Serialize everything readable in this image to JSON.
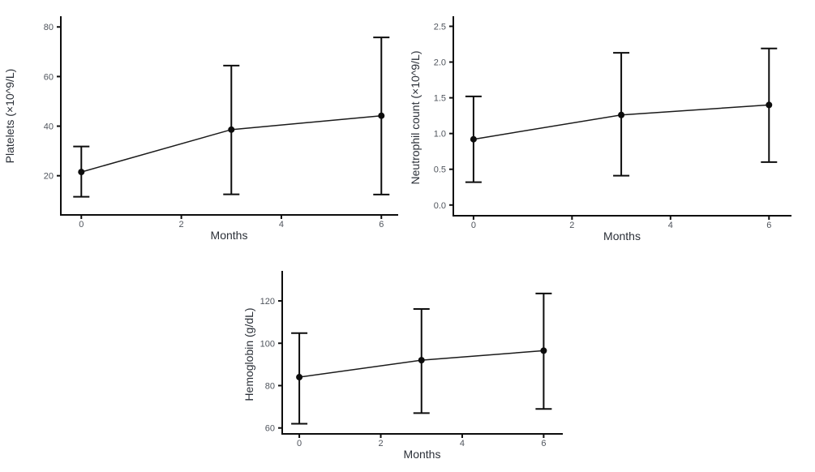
{
  "style": {
    "background": "#ffffff",
    "axis_line_color": "#0d0d0d",
    "tick_label_color": "#50555d",
    "axis_title_color": "#2b3038",
    "point_color": "#0d0d0d",
    "line_color": "#1a1a1a",
    "error_bar_color": "#0d0d0d"
  },
  "chart_data": [
    {
      "id": "platelets",
      "type": "line",
      "xlabel": "Months",
      "ylabel": "Platelets (×10^9/L)",
      "x": [
        0,
        3,
        6
      ],
      "series": [
        {
          "name": "mean",
          "values": [
            21.5,
            38.6,
            44.2
          ]
        }
      ],
      "error_low": [
        11.5,
        12.5,
        12.4
      ],
      "error_high": [
        31.8,
        64.4,
        75.8
      ],
      "xticks": [
        0,
        2,
        4,
        6
      ],
      "xtick_labels": [
        "0",
        "2",
        "4",
        "6"
      ],
      "yticks": [
        20,
        40,
        60,
        80
      ],
      "ytick_labels": [
        "20",
        "40",
        "60",
        "80"
      ],
      "xlim": [
        -0.41,
        6.32
      ],
      "ylim": [
        4.2,
        84
      ],
      "grid": false,
      "legend": false
    },
    {
      "id": "neutrophil-count",
      "type": "line",
      "xlabel": "Months",
      "ylabel": "Neutrophil count (×10^9/L)",
      "x": [
        0,
        3,
        6
      ],
      "series": [
        {
          "name": "mean",
          "values": [
            0.92,
            1.26,
            1.4
          ]
        }
      ],
      "error_low": [
        0.32,
        0.41,
        0.6
      ],
      "error_high": [
        1.52,
        2.13,
        2.19
      ],
      "xticks": [
        0,
        2,
        4,
        6
      ],
      "xtick_labels": [
        "0",
        "2",
        "4",
        "6"
      ],
      "yticks": [
        0,
        0.5,
        1,
        1.5,
        2,
        2.5
      ],
      "ytick_labels": [
        "0.0",
        "0.5",
        "1.0",
        "1.5",
        "2.0",
        "2.5"
      ],
      "xlim": [
        -0.41,
        6.44
      ],
      "ylim": [
        -0.15,
        2.63
      ],
      "grid": false,
      "legend": false
    },
    {
      "id": "hemoglobin",
      "type": "line",
      "xlabel": "Months",
      "ylabel": "Hemoglobin (g/dL)",
      "x": [
        0,
        3,
        6
      ],
      "series": [
        {
          "name": "mean",
          "values": [
            84,
            92,
            96.5
          ]
        }
      ],
      "error_low": [
        62,
        67,
        69
      ],
      "error_high": [
        104.8,
        116.2,
        123.5
      ],
      "xticks": [
        0,
        2,
        4,
        6
      ],
      "xtick_labels": [
        "0",
        "2",
        "4",
        "6"
      ],
      "yticks": [
        60,
        80,
        100,
        120
      ],
      "ytick_labels": [
        "60",
        "80",
        "100",
        "120"
      ],
      "xlim": [
        -0.42,
        6.45
      ],
      "ylim": [
        57.2,
        133.8
      ],
      "grid": false,
      "legend": false
    }
  ]
}
